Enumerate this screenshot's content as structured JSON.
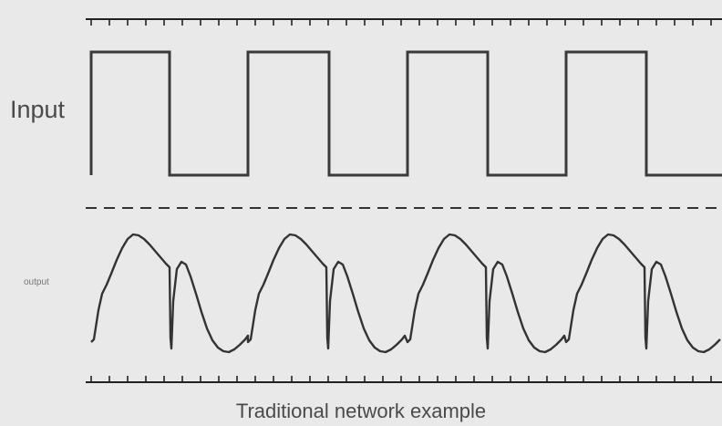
{
  "labels": {
    "input": "Input",
    "output": "output",
    "caption": "Traditional network example"
  },
  "colors": {
    "background": "#e9e9e9",
    "trace": "#3a3a3a",
    "axis": "#222222",
    "divider": "#333333"
  },
  "signals": {
    "input_waveform": "square",
    "input_cycles": 4,
    "output_waveform": "distorted-square-response"
  }
}
